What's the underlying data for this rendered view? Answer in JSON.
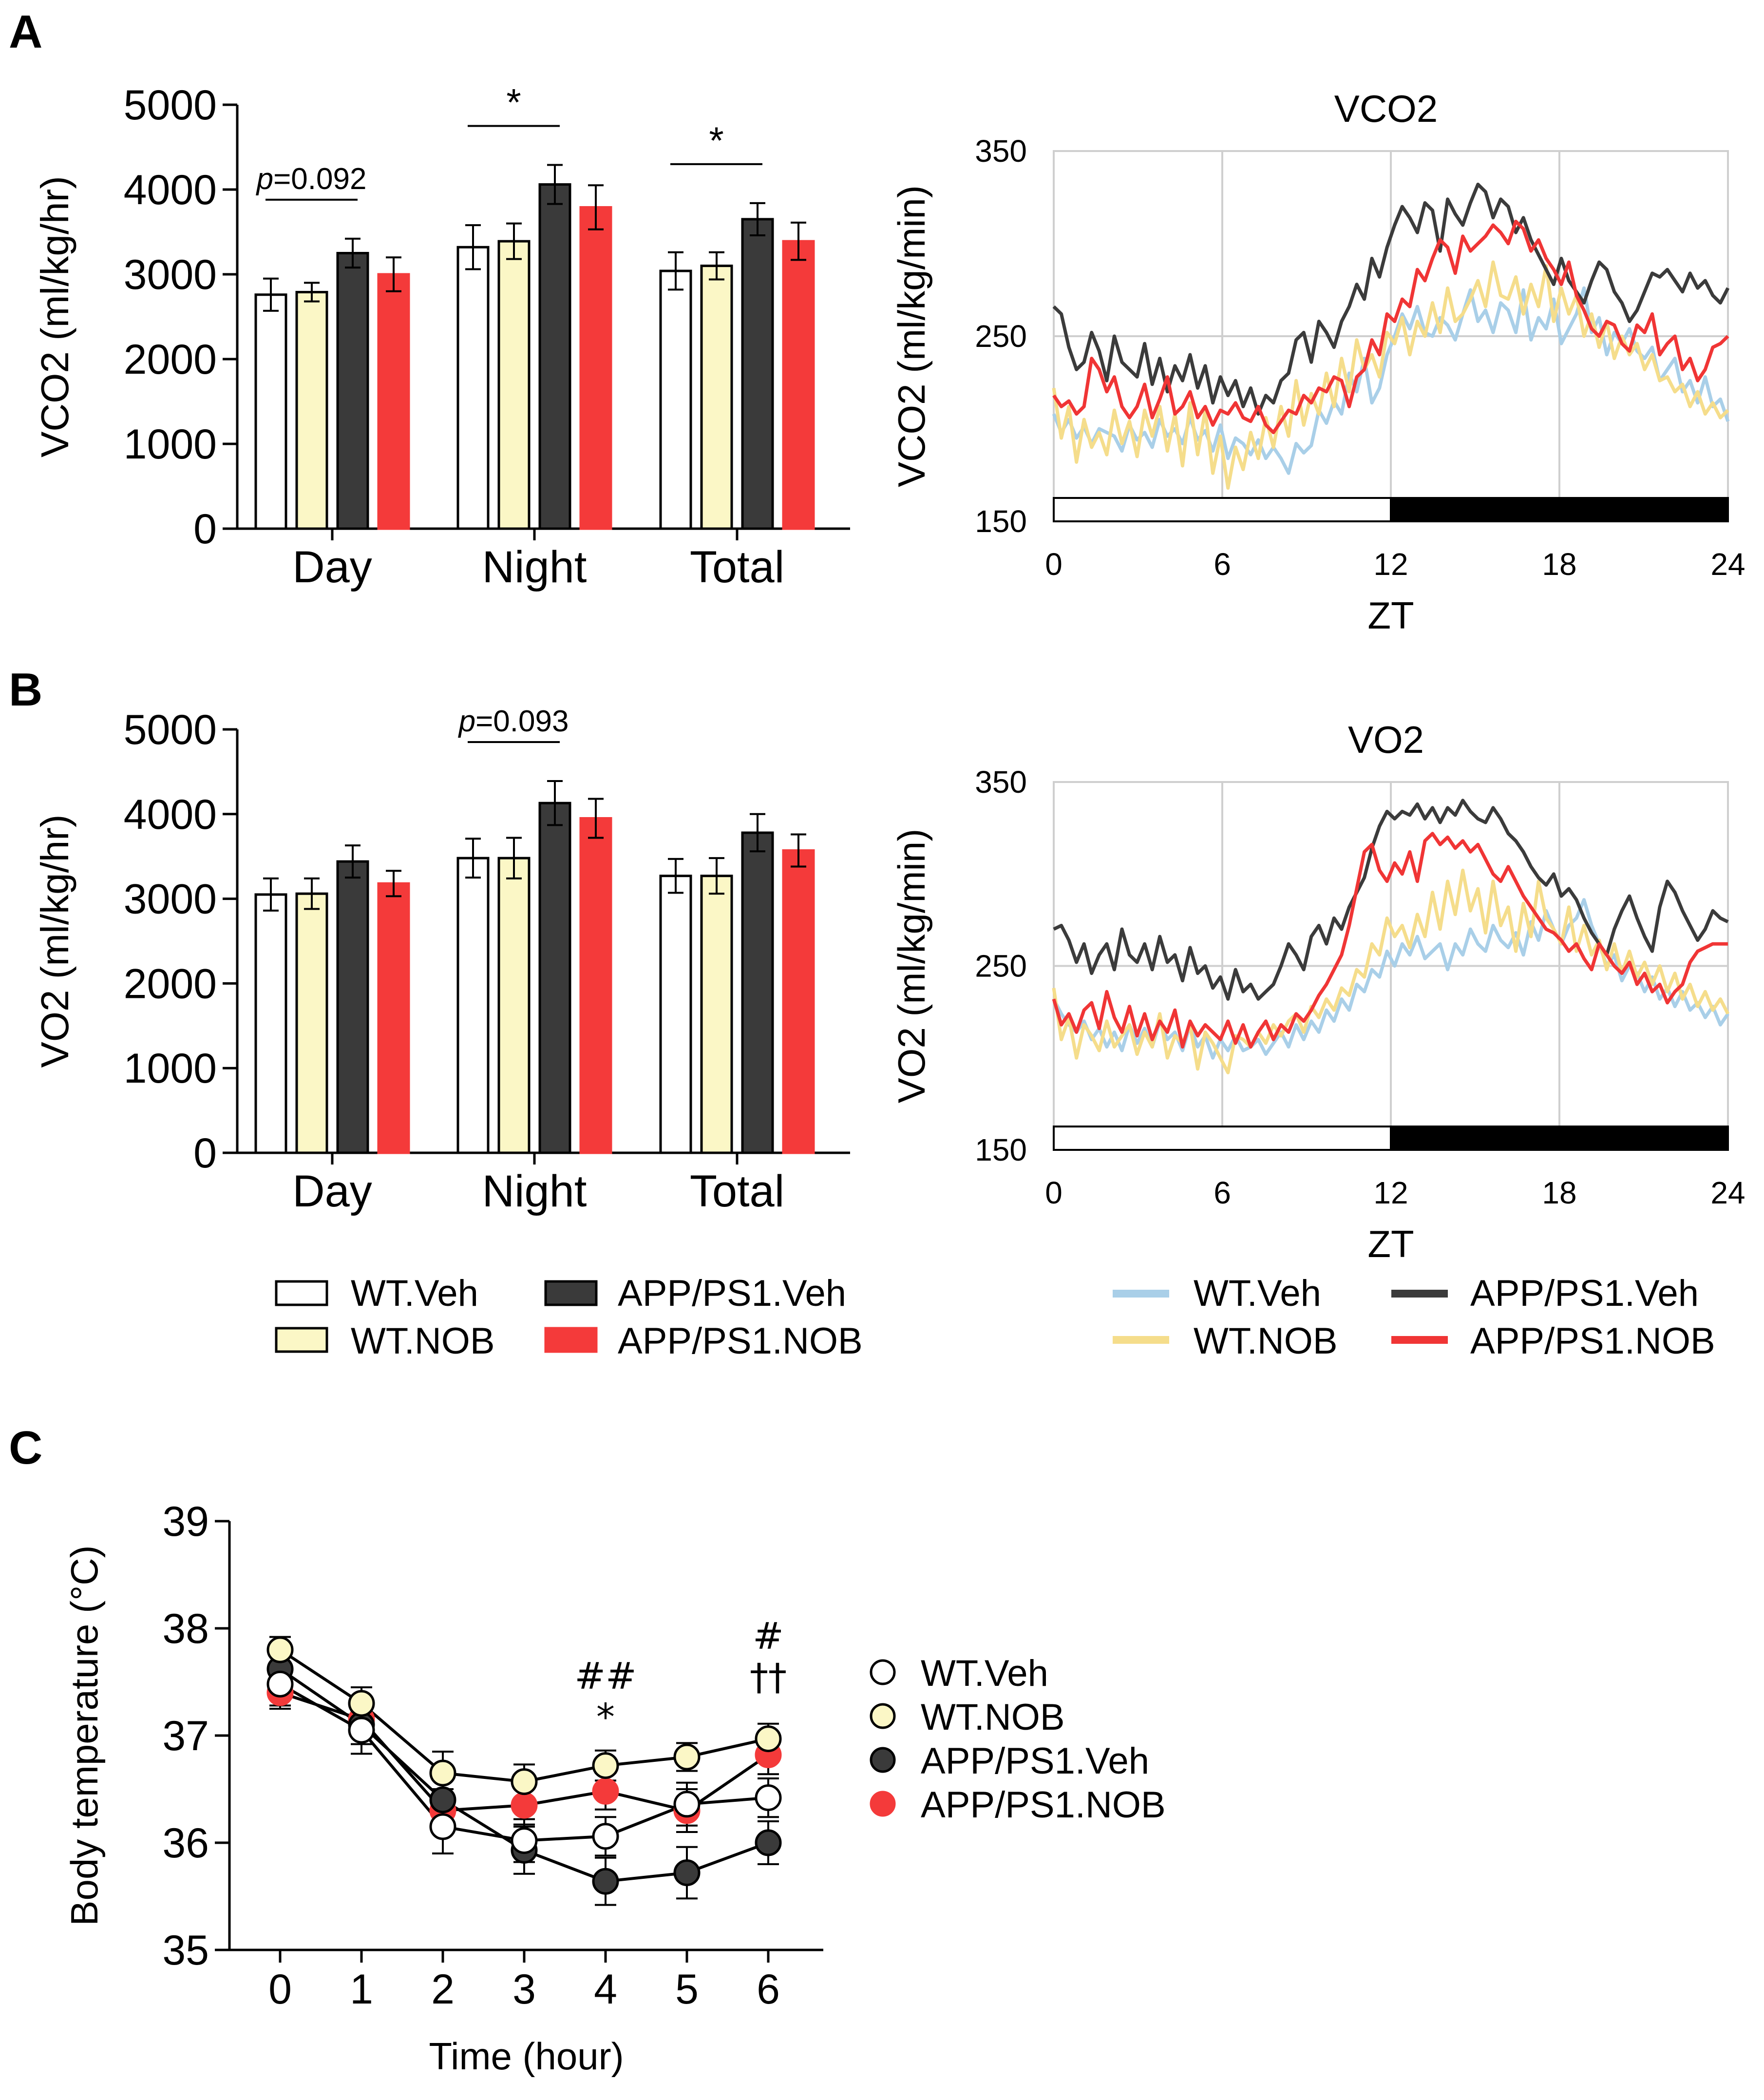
{
  "panels": {
    "a": "A",
    "b": "B",
    "c": "C"
  },
  "colors": {
    "wt_veh": "#ffffff",
    "wt_nob": "#fbf7c6",
    "app_veh": "#3a3a3a",
    "app_nob": "#f43a3a",
    "line_wt_veh": "#a9cfe8",
    "line_wt_nob": "#f5dd8b",
    "line_app_veh": "#3b3b3b",
    "line_app_nob": "#f03535"
  },
  "chart_data": [
    {
      "id": "vco2_bar",
      "type": "bar",
      "ylabel": "VCO2 (ml/kg/hr)",
      "categories": [
        "Day",
        "Night",
        "Total"
      ],
      "yticks": [
        "0",
        "1000",
        "2000",
        "3000",
        "4000",
        "5000"
      ],
      "ylim": [
        0,
        5000
      ],
      "series": [
        {
          "name": "WT.Veh",
          "values": [
            2760,
            3320,
            3040
          ],
          "errors": [
            190,
            260,
            220
          ]
        },
        {
          "name": "WT.NOB",
          "values": [
            2790,
            3390,
            3100
          ],
          "errors": [
            110,
            210,
            160
          ]
        },
        {
          "name": "APP/PS1.Veh",
          "values": [
            3250,
            4060,
            3650
          ],
          "errors": [
            170,
            230,
            190
          ]
        },
        {
          "name": "APP/PS1.NOB",
          "values": [
            3000,
            3790,
            3390
          ],
          "errors": [
            200,
            260,
            220
          ]
        }
      ],
      "annotations": [
        {
          "group": 0,
          "p_label": "p",
          "value_label": "=0.092"
        },
        {
          "group": 1,
          "label": "*"
        },
        {
          "group": 2,
          "label": "*"
        }
      ]
    },
    {
      "id": "vco2_line",
      "type": "line",
      "title": "VCO2",
      "ylabel": "VCO2 (ml/kg/min)",
      "xlabel": "ZT",
      "yticks": [
        "150",
        "250",
        "350"
      ],
      "xticks": [
        "0",
        "6",
        "12",
        "18",
        "24"
      ],
      "ylim": [
        150,
        350
      ],
      "xlim": [
        0,
        24
      ],
      "light_dark_bar": "ZT 0–12 light, ZT 12–24 dark",
      "series": [
        {
          "name": "WT.Veh",
          "values": [
            208,
            198,
            205,
            195,
            201,
            192,
            200,
            198,
            196,
            188,
            202,
            194,
            198,
            190,
            205,
            196,
            200,
            192,
            206,
            194,
            199,
            188,
            202,
            184,
            195,
            192,
            186,
            194,
            184,
            190,
            184,
            176,
            192,
            187,
            191,
            210,
            203,
            215,
            208,
            230,
            220,
            238,
            214,
            222,
            240,
            250,
            262,
            254,
            266,
            252,
            250,
            260,
            256,
            248,
            262,
            275,
            258,
            264,
            252,
            268,
            264,
            252,
            275,
            248,
            260,
            254,
            270,
            246,
            254,
            262,
            276,
            252,
            260,
            240,
            252,
            246,
            254,
            242,
            238,
            244,
            226,
            232,
            238,
            220,
            226,
            214,
            228,
            212,
            216,
            204
          ]
        },
        {
          "name": "WT.NOB",
          "values": [
            222,
            195,
            212,
            182,
            205,
            190,
            198,
            186,
            210,
            192,
            204,
            185,
            210,
            196,
            212,
            188,
            208,
            180,
            214,
            186,
            210,
            176,
            196,
            168,
            190,
            178,
            198,
            184,
            206,
            190,
            212,
            196,
            226,
            202,
            219,
            208,
            230,
            212,
            238,
            220,
            248,
            232,
            240,
            228,
            252,
            246,
            260,
            240,
            258,
            250,
            268,
            252,
            276,
            258,
            262,
            270,
            280,
            266,
            290,
            272,
            270,
            282,
            262,
            278,
            266,
            288,
            258,
            276,
            262,
            272,
            250,
            262,
            244,
            258,
            238,
            250,
            240,
            246,
            232,
            240,
            226,
            228,
            220,
            224,
            212,
            220,
            208,
            214,
            206,
            210
          ]
        },
        {
          "name": "APP/PS1.Veh",
          "values": [
            266,
            262,
            244,
            232,
            236,
            252,
            242,
            226,
            250,
            236,
            232,
            228,
            246,
            224,
            238,
            220,
            234,
            226,
            240,
            222,
            234,
            214,
            228,
            218,
            226,
            212,
            222,
            208,
            218,
            214,
            226,
            230,
            248,
            252,
            236,
            258,
            252,
            244,
            258,
            266,
            278,
            270,
            292,
            282,
            298,
            310,
            320,
            314,
            306,
            322,
            318,
            296,
            324,
            316,
            310,
            322,
            332,
            328,
            314,
            324,
            320,
            306,
            314,
            302,
            294,
            286,
            278,
            292,
            280,
            274,
            268,
            280,
            290,
            286,
            274,
            268,
            258,
            264,
            274,
            284,
            282,
            286,
            280,
            274,
            284,
            276,
            280,
            272,
            268,
            276
          ]
        },
        {
          "name": "APP/PS1.NOB",
          "values": [
            218,
            212,
            215,
            208,
            212,
            238,
            232,
            220,
            228,
            212,
            206,
            212,
            224,
            206,
            216,
            228,
            208,
            212,
            220,
            206,
            212,
            202,
            210,
            208,
            214,
            206,
            204,
            212,
            202,
            198,
            204,
            210,
            208,
            218,
            214,
            222,
            220,
            228,
            226,
            212,
            228,
            232,
            248,
            240,
            262,
            258,
            270,
            266,
            286,
            280,
            292,
            302,
            298,
            284,
            304,
            296,
            300,
            304,
            310,
            306,
            300,
            312,
            308,
            296,
            302,
            292,
            286,
            278,
            290,
            272,
            264,
            254,
            250,
            258,
            256,
            246,
            242,
            256,
            252,
            262,
            240,
            246,
            250,
            232,
            238,
            226,
            232,
            244,
            246,
            250
          ]
        }
      ]
    },
    {
      "id": "vo2_bar",
      "type": "bar",
      "ylabel": "VO2 (ml/kg/hr)",
      "categories": [
        "Day",
        "Night",
        "Total"
      ],
      "yticks": [
        "0",
        "1000",
        "2000",
        "3000",
        "4000",
        "5000"
      ],
      "ylim": [
        0,
        5000
      ],
      "series": [
        {
          "name": "WT.Veh",
          "values": [
            3050,
            3480,
            3270
          ],
          "errors": [
            190,
            230,
            200
          ]
        },
        {
          "name": "WT.NOB",
          "values": [
            3060,
            3480,
            3270
          ],
          "errors": [
            180,
            240,
            210
          ]
        },
        {
          "name": "APP/PS1.Veh",
          "values": [
            3440,
            4130,
            3780
          ],
          "errors": [
            190,
            260,
            220
          ]
        },
        {
          "name": "APP/PS1.NOB",
          "values": [
            3180,
            3950,
            3570
          ],
          "errors": [
            150,
            230,
            190
          ]
        }
      ],
      "annotations": [
        {
          "group": 1,
          "p_label": "p",
          "value_label": "=0.093"
        }
      ]
    },
    {
      "id": "vo2_line",
      "type": "line",
      "title": "VO2",
      "ylabel": "VO2 (ml/kg/min)",
      "xlabel": "ZT",
      "yticks": [
        "150",
        "250",
        "350"
      ],
      "xticks": [
        "0",
        "6",
        "12",
        "18",
        "24"
      ],
      "ylim": [
        150,
        350
      ],
      "xlim": [
        0,
        24
      ],
      "light_dark_bar": "ZT 0–12 light, ZT 12–24 dark",
      "series": [
        {
          "name": "WT.Veh",
          "values": [
            232,
            224,
            218,
            214,
            220,
            210,
            216,
            206,
            214,
            204,
            218,
            208,
            216,
            206,
            220,
            210,
            214,
            204,
            218,
            206,
            212,
            200,
            210,
            204,
            212,
            204,
            206,
            210,
            202,
            208,
            214,
            206,
            218,
            210,
            220,
            214,
            226,
            220,
            232,
            226,
            240,
            236,
            248,
            244,
            258,
            250,
            262,
            256,
            266,
            254,
            258,
            262,
            248,
            262,
            256,
            270,
            262,
            258,
            272,
            264,
            260,
            268,
            256,
            274,
            264,
            280,
            270,
            262,
            272,
            276,
            286,
            272,
            262,
            250,
            256,
            242,
            250,
            246,
            236,
            244,
            232,
            238,
            228,
            236,
            226,
            230,
            222,
            228,
            218,
            224
          ]
        },
        {
          "name": "WT.NOB",
          "values": [
            238,
            210,
            222,
            200,
            218,
            212,
            204,
            220,
            206,
            212,
            218,
            202,
            214,
            206,
            224,
            200,
            212,
            208,
            218,
            194,
            214,
            208,
            200,
            192,
            212,
            210,
            206,
            214,
            208,
            218,
            212,
            220,
            224,
            214,
            228,
            222,
            232,
            226,
            238,
            234,
            248,
            244,
            262,
            256,
            276,
            266,
            272,
            260,
            278,
            266,
            290,
            270,
            296,
            278,
            302,
            280,
            292,
            268,
            296,
            272,
            282,
            258,
            284,
            266,
            296,
            276,
            270,
            262,
            282,
            258,
            272,
            256,
            264,
            248,
            262,
            246,
            258,
            244,
            252,
            240,
            250,
            236,
            246,
            232,
            240,
            228,
            236,
            226,
            232,
            224
          ]
        },
        {
          "name": "APP/PS1.Veh",
          "values": [
            270,
            272,
            264,
            252,
            262,
            246,
            256,
            262,
            248,
            270,
            256,
            252,
            262,
            248,
            266,
            252,
            256,
            242,
            260,
            246,
            250,
            238,
            244,
            232,
            248,
            236,
            240,
            232,
            236,
            240,
            250,
            262,
            256,
            248,
            266,
            272,
            262,
            276,
            270,
            282,
            290,
            298,
            314,
            326,
            334,
            330,
            334,
            332,
            338,
            330,
            336,
            328,
            336,
            332,
            340,
            334,
            330,
            328,
            336,
            330,
            322,
            318,
            312,
            304,
            298,
            294,
            300,
            288,
            292,
            286,
            276,
            268,
            262,
            256,
            270,
            280,
            288,
            276,
            266,
            258,
            282,
            296,
            290,
            280,
            272,
            264,
            270,
            280,
            276,
            274
          ]
        },
        {
          "name": "APP/PS1.NOB",
          "values": [
            232,
            218,
            224,
            214,
            226,
            230,
            216,
            236,
            222,
            214,
            228,
            212,
            224,
            210,
            220,
            214,
            226,
            206,
            220,
            212,
            218,
            214,
            210,
            220,
            208,
            218,
            206,
            214,
            220,
            210,
            218,
            214,
            224,
            220,
            226,
            234,
            240,
            248,
            256,
            272,
            292,
            312,
            316,
            302,
            296,
            306,
            300,
            312,
            296,
            318,
            322,
            316,
            320,
            314,
            318,
            312,
            316,
            308,
            300,
            296,
            304,
            296,
            288,
            282,
            276,
            270,
            268,
            264,
            258,
            262,
            254,
            248,
            262,
            256,
            250,
            246,
            252,
            240,
            246,
            236,
            240,
            230,
            236,
            240,
            252,
            258,
            260,
            262,
            262,
            262
          ]
        }
      ]
    },
    {
      "id": "body_temp",
      "type": "line",
      "ylabel": "Body temperature (°C)",
      "xlabel": "Time (hour)",
      "x": [
        0,
        1,
        2,
        3,
        4,
        5,
        6
      ],
      "xticks": [
        "0",
        "1",
        "2",
        "3",
        "4",
        "5",
        "6"
      ],
      "yticks": [
        "35",
        "36",
        "37",
        "38",
        "39"
      ],
      "ylim": [
        35,
        39
      ],
      "series": [
        {
          "name": "WT.Veh",
          "values": [
            37.48,
            37.05,
            36.15,
            36.02,
            36.06,
            36.36,
            36.42
          ],
          "errors": [
            0.2,
            0.22,
            0.25,
            0.2,
            0.18,
            0.2,
            0.18
          ]
        },
        {
          "name": "WT.NOB",
          "values": [
            37.8,
            37.3,
            36.65,
            36.57,
            36.72,
            36.8,
            36.97
          ],
          "errors": [
            0.12,
            0.15,
            0.2,
            0.16,
            0.14,
            0.13,
            0.14
          ]
        },
        {
          "name": "APP/PS1.Veh",
          "values": [
            37.62,
            37.1,
            36.4,
            35.93,
            35.64,
            35.72,
            36.0
          ],
          "errors": [
            0.15,
            0.18,
            0.2,
            0.22,
            0.22,
            0.24,
            0.2
          ]
        },
        {
          "name": "APP/PS1.NOB",
          "values": [
            37.4,
            37.15,
            36.3,
            36.35,
            36.48,
            36.3,
            36.82
          ],
          "errors": [
            0.15,
            0.16,
            0.2,
            0.18,
            0.17,
            0.2,
            0.18
          ]
        }
      ],
      "annotations": [
        {
          "x": 4,
          "labels": [
            "##",
            "*"
          ]
        },
        {
          "x": 6,
          "labels": [
            "#",
            "††"
          ]
        }
      ]
    }
  ],
  "legends": {
    "bar": [
      "WT.Veh",
      "WT.NOB",
      "APP/PS1.Veh",
      "APP/PS1.NOB"
    ],
    "line": [
      "WT.Veh",
      "WT.NOB",
      "APP/PS1.Veh",
      "APP/PS1.NOB"
    ],
    "temp": [
      "WT.Veh",
      "WT.NOB",
      "APP/PS1.Veh",
      "APP/PS1.NOB"
    ]
  }
}
